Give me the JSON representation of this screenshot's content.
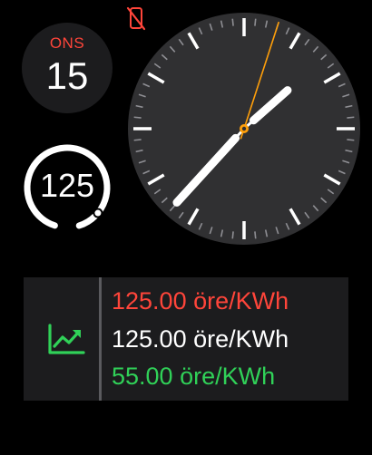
{
  "status": {
    "icon": "phone-disconnected-icon",
    "color": "#ff453a"
  },
  "date_complication": {
    "weekday": "ONS",
    "day": "15"
  },
  "gauge_complication": {
    "value": "125",
    "level": 0.9
  },
  "clock": {
    "hours": 1,
    "minutes": 37,
    "seconds": 3,
    "second_hand_color": "#ff9f0a"
  },
  "price_complication": {
    "icon": "trend-chart-icon",
    "icon_color": "#30d158",
    "current_price": "125.00 öre/KWh",
    "current_color": "#ff453a",
    "high_price": "125.00 öre/KWh",
    "low_price": "55.00 öre/KWh",
    "low_color": "#30d158"
  }
}
